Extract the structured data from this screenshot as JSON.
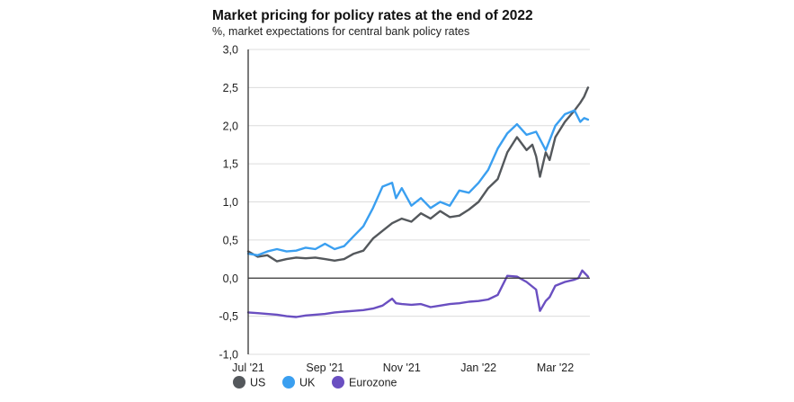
{
  "colors": {
    "US": "#54585c",
    "UK": "#3a9ff0",
    "Eurozone": "#6a4fc1",
    "grid": "#dcdcdc",
    "axis": "#333333"
  },
  "chart_data": {
    "type": "line",
    "title": "Market pricing for policy rates at the end of 2022",
    "subtitle": "%, market expectations for central bank policy rates",
    "xlabel": "",
    "ylabel": "",
    "ylim": [
      -1.0,
      3.0
    ],
    "yticks": [
      -1.0,
      -0.5,
      0.0,
      0.5,
      1.0,
      1.5,
      2.0,
      2.5,
      3.0
    ],
    "ytick_labels": [
      "-1,0",
      "-0,5",
      "0,0",
      "0,5",
      "1,0",
      "1,5",
      "2,0",
      "2,5",
      "3,0"
    ],
    "xlim": [
      0,
      8.9
    ],
    "xticks": [
      0,
      2,
      4,
      6,
      8
    ],
    "xtick_labels": [
      "Jul '21",
      "Sep '21",
      "Nov '21",
      "Jan '22",
      "Mar '22"
    ],
    "grid": true,
    "legend": "bottom",
    "series": [
      {
        "name": "US",
        "x": [
          0,
          0.25,
          0.5,
          0.75,
          1.0,
          1.25,
          1.5,
          1.75,
          2.0,
          2.25,
          2.5,
          2.75,
          3.0,
          3.25,
          3.5,
          3.75,
          4.0,
          4.25,
          4.5,
          4.75,
          5.0,
          5.25,
          5.5,
          5.75,
          6.0,
          6.25,
          6.5,
          6.75,
          7.0,
          7.25,
          7.4,
          7.5,
          7.6,
          7.75,
          7.85,
          8.0,
          8.25,
          8.5,
          8.65,
          8.75,
          8.85
        ],
        "values": [
          0.35,
          0.28,
          0.3,
          0.22,
          0.25,
          0.27,
          0.26,
          0.27,
          0.25,
          0.23,
          0.25,
          0.32,
          0.36,
          0.52,
          0.62,
          0.72,
          0.78,
          0.74,
          0.85,
          0.78,
          0.88,
          0.8,
          0.82,
          0.9,
          1.0,
          1.18,
          1.3,
          1.65,
          1.85,
          1.68,
          1.75,
          1.6,
          1.33,
          1.65,
          1.55,
          1.85,
          2.05,
          2.2,
          2.3,
          2.38,
          2.5
        ]
      },
      {
        "name": "UK",
        "x": [
          0,
          0.25,
          0.5,
          0.75,
          1.0,
          1.25,
          1.5,
          1.75,
          2.0,
          2.25,
          2.5,
          2.75,
          3.0,
          3.25,
          3.5,
          3.75,
          3.85,
          4.0,
          4.25,
          4.5,
          4.75,
          5.0,
          5.25,
          5.5,
          5.75,
          6.0,
          6.25,
          6.5,
          6.75,
          7.0,
          7.25,
          7.5,
          7.75,
          8.0,
          8.25,
          8.5,
          8.65,
          8.75,
          8.85
        ],
        "values": [
          0.32,
          0.3,
          0.35,
          0.38,
          0.35,
          0.36,
          0.4,
          0.38,
          0.45,
          0.38,
          0.42,
          0.55,
          0.68,
          0.92,
          1.2,
          1.25,
          1.05,
          1.18,
          0.95,
          1.05,
          0.92,
          1.0,
          0.95,
          1.15,
          1.12,
          1.25,
          1.42,
          1.7,
          1.9,
          2.02,
          1.88,
          1.92,
          1.68,
          2.0,
          2.15,
          2.2,
          2.05,
          2.1,
          2.08
        ]
      },
      {
        "name": "Eurozone",
        "x": [
          0,
          0.25,
          0.5,
          0.75,
          1.0,
          1.25,
          1.5,
          1.75,
          2.0,
          2.25,
          2.5,
          2.75,
          3.0,
          3.25,
          3.5,
          3.75,
          3.85,
          4.0,
          4.25,
          4.5,
          4.75,
          5.0,
          5.25,
          5.5,
          5.75,
          6.0,
          6.25,
          6.5,
          6.75,
          7.0,
          7.25,
          7.5,
          7.6,
          7.75,
          7.85,
          8.0,
          8.25,
          8.5,
          8.6,
          8.7,
          8.85
        ],
        "values": [
          -0.45,
          -0.46,
          -0.47,
          -0.48,
          -0.5,
          -0.51,
          -0.49,
          -0.48,
          -0.47,
          -0.45,
          -0.44,
          -0.43,
          -0.42,
          -0.4,
          -0.36,
          -0.27,
          -0.33,
          -0.34,
          -0.35,
          -0.34,
          -0.38,
          -0.36,
          -0.34,
          -0.33,
          -0.31,
          -0.3,
          -0.28,
          -0.22,
          0.03,
          0.02,
          -0.05,
          -0.15,
          -0.43,
          -0.3,
          -0.25,
          -0.1,
          -0.05,
          -0.02,
          0.0,
          0.1,
          0.02
        ]
      }
    ]
  }
}
